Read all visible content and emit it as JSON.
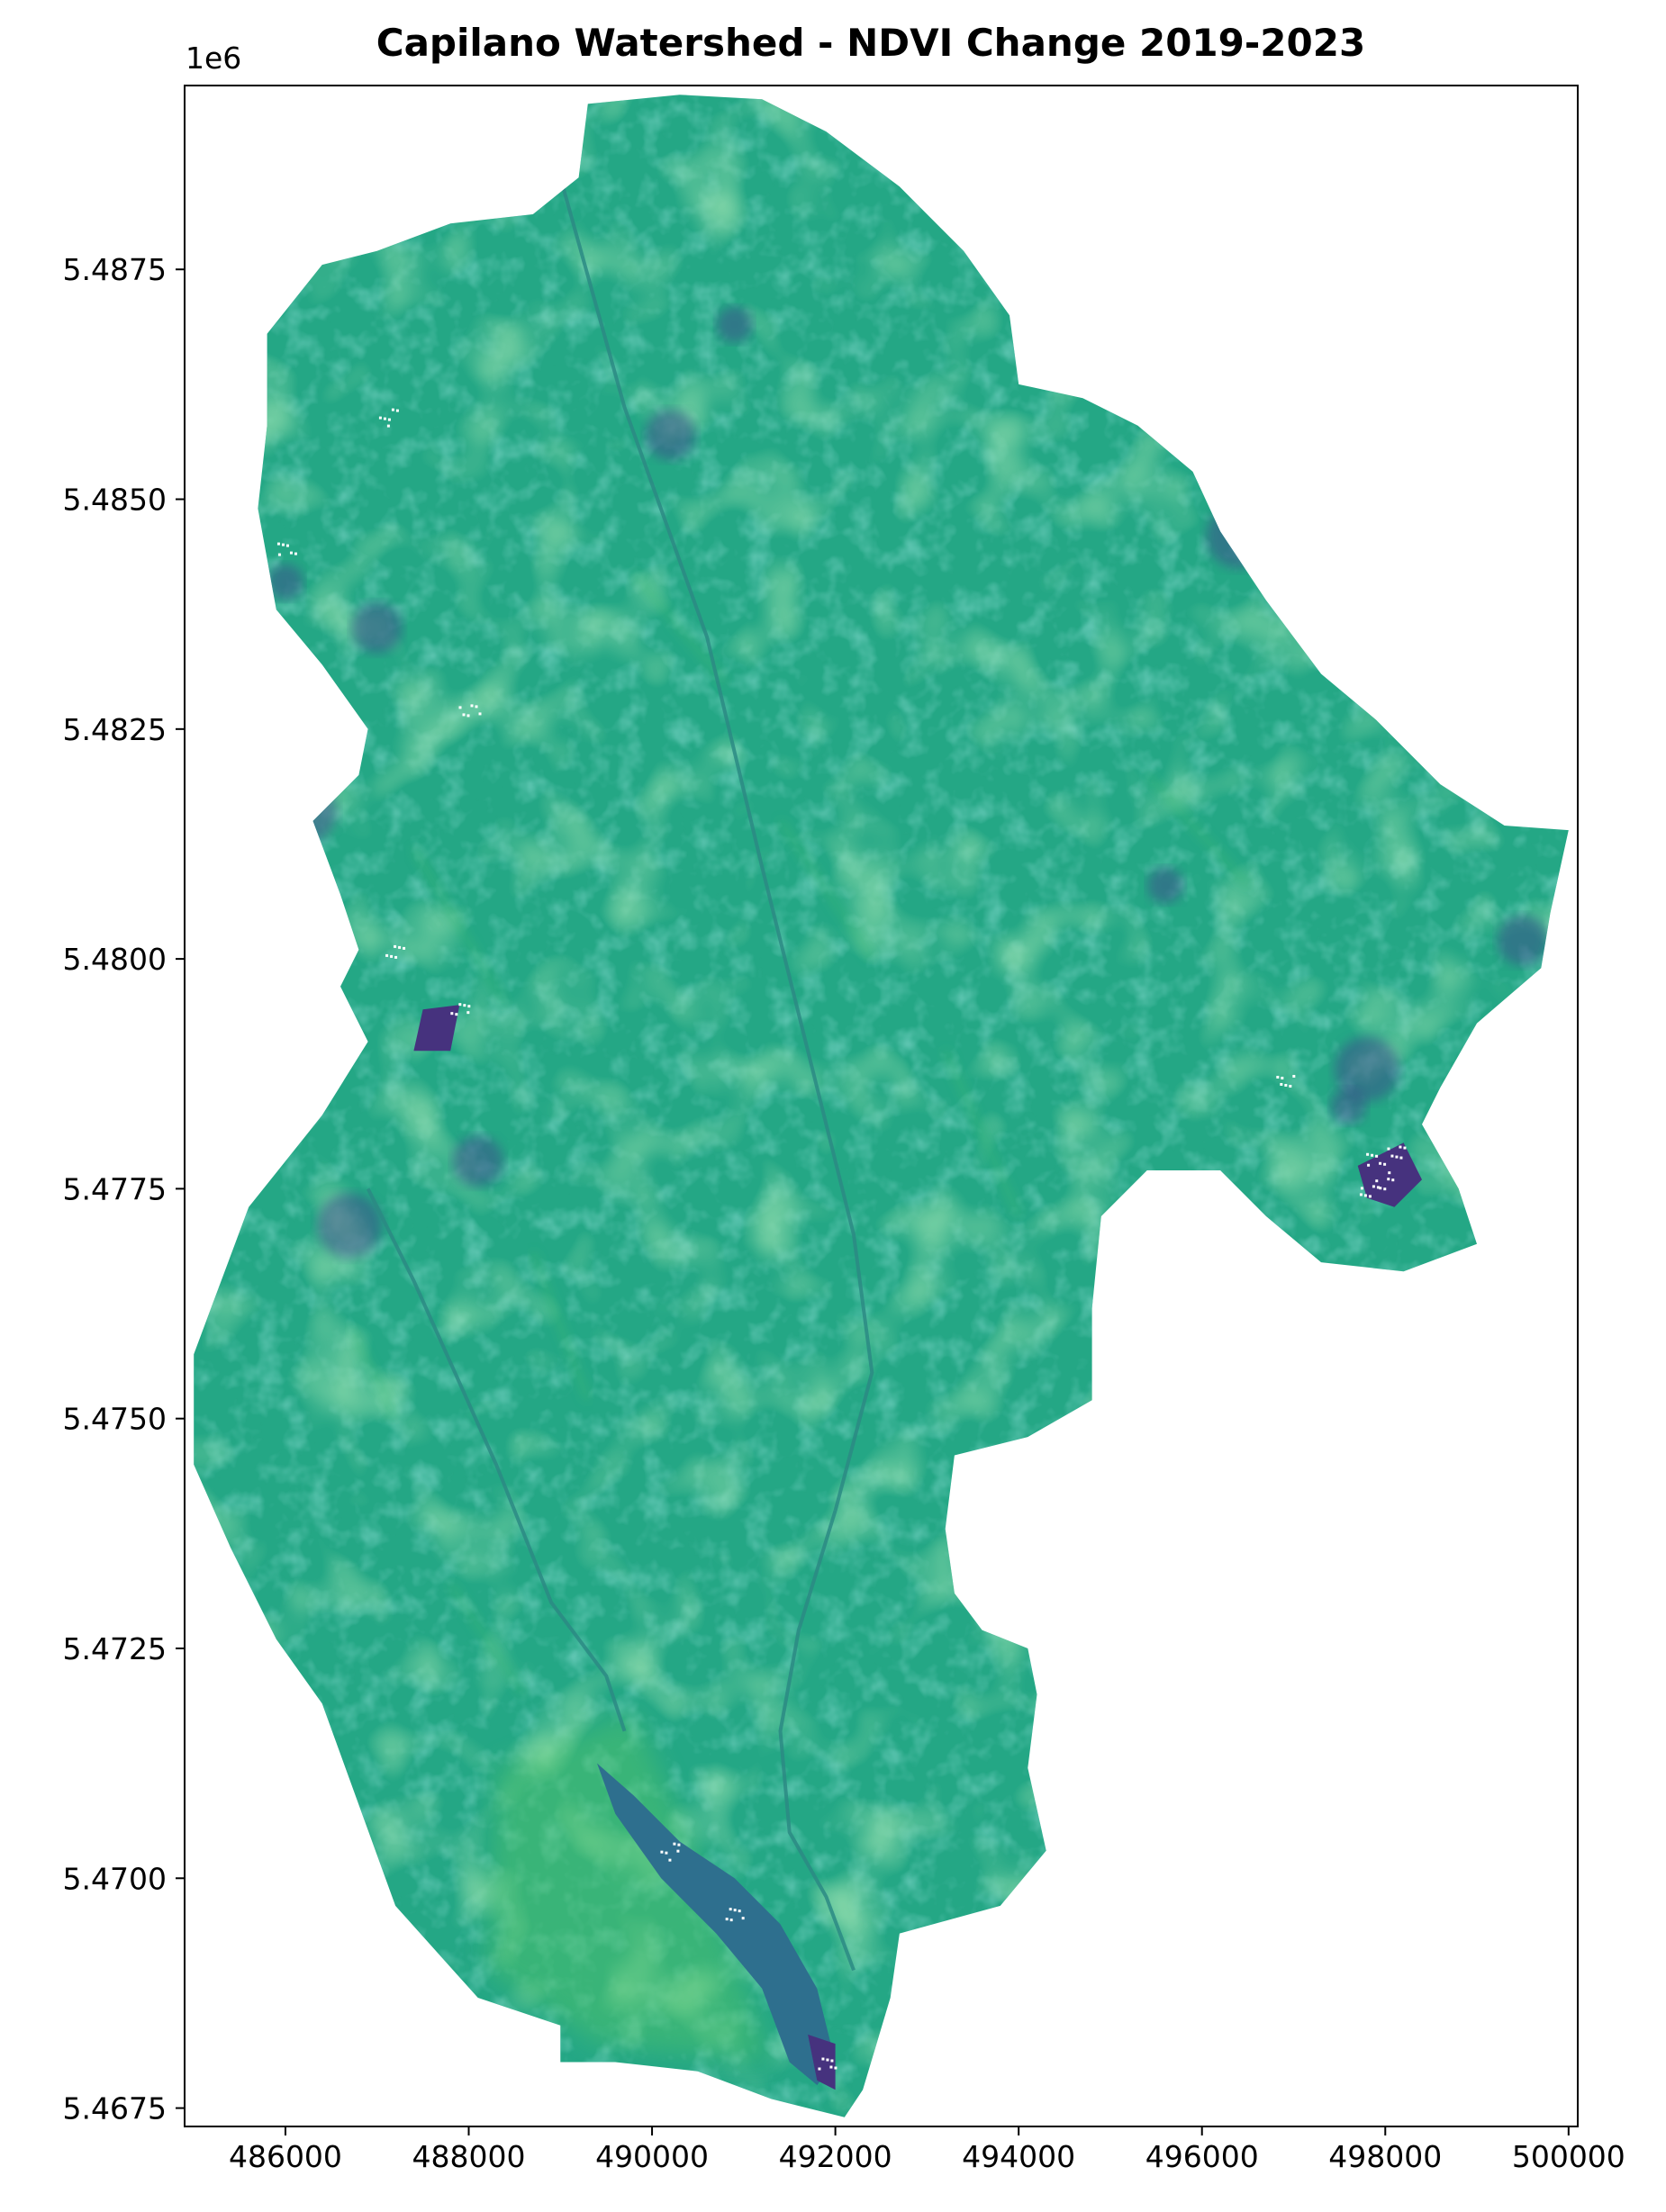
{
  "figure": {
    "title": "Capilano Watershed - NDVI Change 2019-2023",
    "y_offset_label": "1e6"
  },
  "colors": {
    "base": "#24a785",
    "bright": "#3cbb75",
    "light": "#52c569",
    "dark": "#2c8a84",
    "darker": "#2e6f8e",
    "deep": "#3b528b",
    "deepest": "#46327e",
    "no_data": "#ffffff"
  },
  "chart_data": {
    "type": "raster map",
    "colormap": "viridis",
    "grid": false,
    "legend": "none",
    "x_ticks": [
      486000,
      488000,
      490000,
      492000,
      494000,
      496000,
      498000,
      500000
    ],
    "x_tick_labels": [
      "486000",
      "488000",
      "490000",
      "492000",
      "494000",
      "496000",
      "498000",
      "500000"
    ],
    "y_ticks": [
      5.4675,
      5.47,
      5.4725,
      5.475,
      5.4775,
      5.48,
      5.4825,
      5.485,
      5.4875
    ],
    "y_tick_labels": [
      "5.4675",
      "5.4700",
      "5.4725",
      "5.4750",
      "5.4775",
      "5.4800",
      "5.4825",
      "5.4850",
      "5.4875"
    ],
    "xlim": [
      484900,
      500100
    ],
    "ylim": [
      5.4673,
      5.4895
    ],
    "y_scale_factor": 1000000,
    "boundary": [
      [
        489300,
        5.4893
      ],
      [
        490300,
        5.4894
      ],
      [
        491200,
        5.48935
      ],
      [
        491900,
        5.489
      ],
      [
        492700,
        5.4884
      ],
      [
        493400,
        5.4877
      ],
      [
        493900,
        5.487
      ],
      [
        494000,
        5.48625
      ],
      [
        494700,
        5.4861
      ],
      [
        495300,
        5.4858
      ],
      [
        495900,
        5.4853
      ],
      [
        496200,
        5.48465
      ],
      [
        496700,
        5.4839
      ],
      [
        497300,
        5.4831
      ],
      [
        497900,
        5.4826
      ],
      [
        498600,
        5.4819
      ],
      [
        499300,
        5.48145
      ],
      [
        500000,
        5.4814
      ],
      [
        499800,
        5.4805
      ],
      [
        499700,
        5.4799
      ],
      [
        499000,
        5.4793
      ],
      [
        498600,
        5.4786
      ],
      [
        498400,
        5.4782
      ],
      [
        498800,
        5.4775
      ],
      [
        499000,
        5.4769
      ],
      [
        498200,
        5.4766
      ],
      [
        497300,
        5.4767
      ],
      [
        496700,
        5.4772
      ],
      [
        496200,
        5.4777
      ],
      [
        495400,
        5.4777
      ],
      [
        494900,
        5.4772
      ],
      [
        494800,
        5.4762
      ],
      [
        494800,
        5.4752
      ],
      [
        494100,
        5.4748
      ],
      [
        493300,
        5.4746
      ],
      [
        493200,
        5.4738
      ],
      [
        493300,
        5.4731
      ],
      [
        493600,
        5.4727
      ],
      [
        494100,
        5.4725
      ],
      [
        494200,
        5.472
      ],
      [
        494100,
        5.4712
      ],
      [
        494300,
        5.4703
      ],
      [
        493800,
        5.4697
      ],
      [
        492700,
        5.4694
      ],
      [
        492600,
        5.4687
      ],
      [
        492300,
        5.4677
      ],
      [
        492100,
        5.4674
      ],
      [
        491300,
        5.4676
      ],
      [
        490500,
        5.4679
      ],
      [
        489600,
        5.468
      ],
      [
        489000,
        5.468
      ],
      [
        489000,
        5.4684
      ],
      [
        488100,
        5.4687
      ],
      [
        487200,
        5.4697
      ],
      [
        486800,
        5.4708
      ],
      [
        486400,
        5.4719
      ],
      [
        485900,
        5.4726
      ],
      [
        485400,
        5.4736
      ],
      [
        485000,
        5.4745
      ],
      [
        485000,
        5.4757
      ],
      [
        485300,
        5.4765
      ],
      [
        485600,
        5.4773
      ],
      [
        486000,
        5.4778
      ],
      [
        486400,
        5.4783
      ],
      [
        486900,
        5.4791
      ],
      [
        486600,
        5.4797
      ],
      [
        486800,
        5.4801
      ],
      [
        486600,
        5.4807
      ],
      [
        486300,
        5.4815
      ],
      [
        486800,
        5.482
      ],
      [
        486900,
        5.4825
      ],
      [
        486400,
        5.4832
      ],
      [
        485900,
        5.4838
      ],
      [
        485700,
        5.4849
      ],
      [
        485800,
        5.4858
      ],
      [
        485800,
        5.4868
      ],
      [
        486400,
        5.48755
      ],
      [
        487000,
        5.4877
      ],
      [
        487800,
        5.488
      ],
      [
        488700,
        5.4881
      ],
      [
        489200,
        5.4885
      ]
    ],
    "dark_patches": [
      [
        490900,
        5.4869
      ],
      [
        490200,
        5.4857
      ],
      [
        496400,
        5.4846
      ],
      [
        486000,
        5.4841
      ],
      [
        487000,
        5.4836
      ],
      [
        486200,
        5.4816
      ],
      [
        495600,
        5.4808
      ],
      [
        499500,
        5.4802
      ],
      [
        497800,
        5.4788
      ],
      [
        497600,
        5.4784
      ],
      [
        488100,
        5.4778
      ],
      [
        486700,
        5.4771
      ]
    ],
    "bright_streaks": [
      [
        [
          486700,
          5.476
        ],
        [
          487200,
          5.475
        ]
      ],
      [
        [
          488700,
          5.4768
        ],
        [
          489300,
          5.4752
        ]
      ],
      [
        [
          491400,
          5.4815
        ],
        [
          492400,
          5.48
        ]
      ],
      [
        [
          493200,
          5.479
        ],
        [
          494000,
          5.4772
        ]
      ],
      [
        [
          487400,
          5.4812
        ],
        [
          488400,
          5.4795
        ]
      ],
      [
        [
          489800,
          5.4842
        ],
        [
          490800,
          5.483
        ]
      ],
      [
        [
          495400,
          5.482
        ],
        [
          496500,
          5.4808
        ]
      ],
      [
        [
          487800,
          5.4732
        ],
        [
          488600,
          5.472
        ]
      ]
    ],
    "river_channels": [
      [
        [
          489000,
          5.4885
        ],
        [
          489700,
          5.486
        ],
        [
          490600,
          5.4835
        ],
        [
          491200,
          5.481
        ],
        [
          491700,
          5.479
        ],
        [
          492200,
          5.477
        ],
        [
          492400,
          5.4755
        ],
        [
          492000,
          5.474
        ]
      ],
      [
        [
          486900,
          5.4775
        ],
        [
          487400,
          5.4765
        ],
        [
          488300,
          5.4745
        ],
        [
          488900,
          5.473
        ],
        [
          489500,
          5.4722
        ],
        [
          489700,
          5.4716
        ]
      ],
      [
        [
          492000,
          5.474
        ],
        [
          491600,
          5.4727
        ],
        [
          491400,
          5.4716
        ],
        [
          491500,
          5.4705
        ],
        [
          491900,
          5.4698
        ],
        [
          492200,
          5.469
        ]
      ]
    ],
    "reservoir": [
      [
        489400,
        5.47125
      ],
      [
        489800,
        5.4709
      ],
      [
        490300,
        5.4704
      ],
      [
        490900,
        5.47
      ],
      [
        491400,
        5.4695
      ],
      [
        491800,
        5.4688
      ],
      [
        492000,
        5.468
      ],
      [
        491800,
        5.46775
      ],
      [
        491500,
        5.468
      ],
      [
        491200,
        5.4688
      ],
      [
        490700,
        5.4694
      ],
      [
        490100,
        5.47
      ],
      [
        489600,
        5.4707
      ]
    ],
    "no_data_spots": [
      [
        497900,
        5.4778
      ],
      [
        498000,
        5.4776
      ],
      [
        497800,
        5.4775
      ],
      [
        498100,
        5.4779
      ],
      [
        496900,
        5.47865
      ],
      [
        487900,
        5.4795
      ],
      [
        487200,
        5.4801
      ],
      [
        488000,
        5.4827
      ],
      [
        487100,
        5.4859
      ],
      [
        486000,
        5.4845
      ],
      [
        491900,
        5.468
      ],
      [
        490900,
        5.4696
      ],
      [
        490200,
        5.4703
      ]
    ],
    "purple_blobs": [
      [
        [
          497700,
          5.47775
        ],
        [
          498200,
          5.478
        ],
        [
          498400,
          5.4776
        ],
        [
          498100,
          5.4773
        ],
        [
          497800,
          5.4774
        ]
      ],
      [
        [
          487500,
          5.47945
        ],
        [
          487900,
          5.4795
        ],
        [
          487800,
          5.479
        ],
        [
          487400,
          5.479
        ]
      ],
      [
        [
          491700,
          5.4683
        ],
        [
          492000,
          5.4682
        ],
        [
          492000,
          5.4677
        ],
        [
          491800,
          5.4678
        ]
      ]
    ]
  }
}
